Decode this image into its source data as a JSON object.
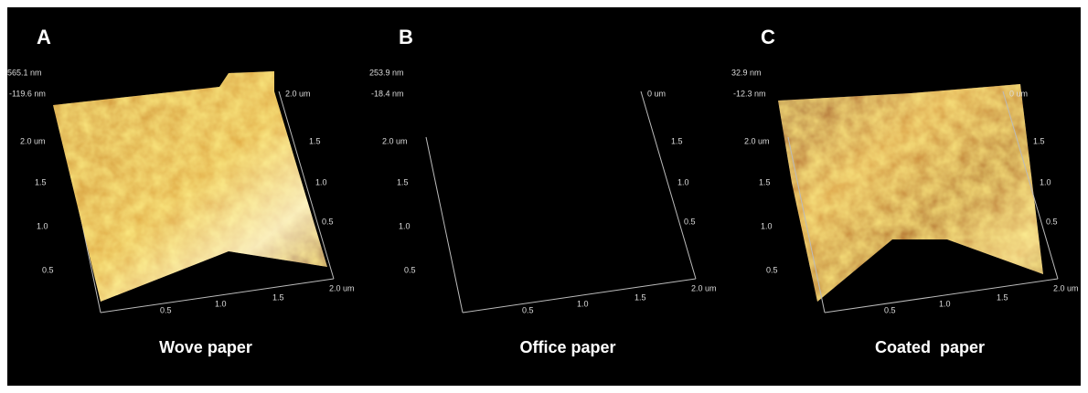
{
  "panels": [
    {
      "letter": "A",
      "z_max": "565.1 nm",
      "z_min": "-119.6 nm",
      "corner": "2.0 um",
      "left_axis": [
        "2.0 um",
        "1.5",
        "1.0",
        "0.5"
      ],
      "right_axis": [
        "1.5",
        "1.0",
        "0.5"
      ],
      "bottom_axis": [
        "0.5",
        "1.0",
        "1.5",
        "2.0 um"
      ],
      "caption": "Wove paper"
    },
    {
      "letter": "B",
      "z_max": "253.9 nm",
      "z_min": "-18.4 nm",
      "corner": "0 um",
      "left_axis": [
        "2.0 um",
        "1.5",
        "1.0",
        "0.5"
      ],
      "right_axis": [
        "1.5",
        "1.0",
        "0.5"
      ],
      "bottom_axis": [
        "0.5",
        "1.0",
        "1.5",
        "2.0 um"
      ],
      "caption": "Office paper"
    },
    {
      "letter": "C",
      "z_max": "32.9 nm",
      "z_min": "-12.3 nm",
      "corner": "0 um",
      "left_axis": [
        "2.0 um",
        "1.5",
        "1.0",
        "0.5"
      ],
      "right_axis": [
        "1.5",
        "1.0",
        "0.5"
      ],
      "bottom_axis": [
        "0.5",
        "1.0",
        "1.5",
        "2.0 um"
      ],
      "caption": "Coated  paper"
    }
  ]
}
